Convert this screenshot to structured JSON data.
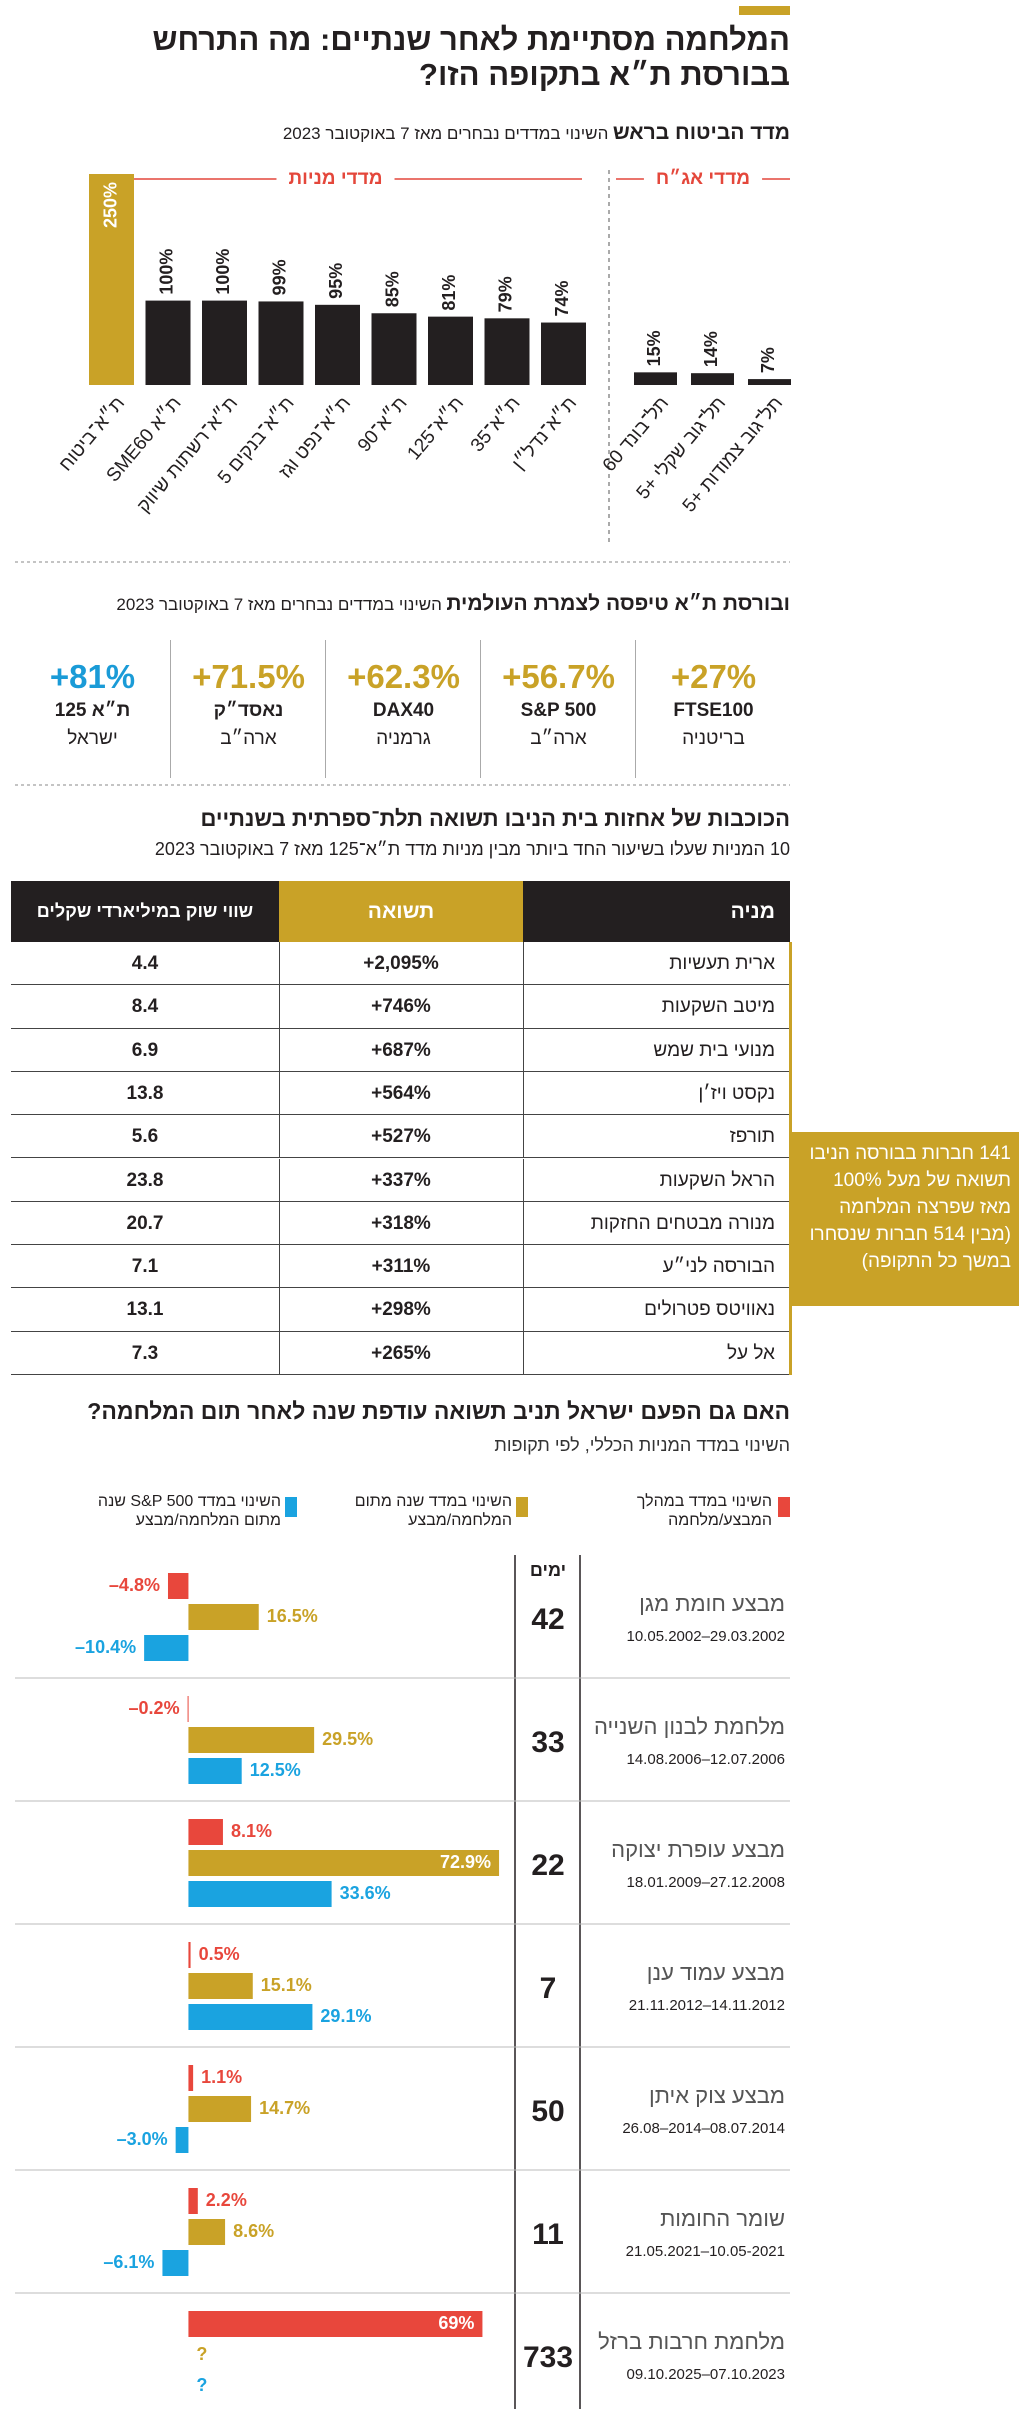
{
  "title": "המלחמה מסתיימת לאחר שנתיים: מה התרחש בבורסת ת״א בתקופה הזו?",
  "section1": {
    "headline": "מדד הביטוח בראש",
    "subtitle": "השינוי במדדים נבחרים מאז 7 באוקטובר 2023"
  },
  "chart_data": [
    {
      "type": "bar",
      "title": "מדדי מניות",
      "categories": [
        "ת״א־ביטוח",
        "ת״א SME60",
        "ת״א־רשתות שיווק",
        "ת״א־בנקים 5",
        "ת״א־נפט וגז",
        "ת״א־90",
        "ת״א־125",
        "ת״א־35",
        "ת״א־נדל״ן"
      ],
      "values": [
        250,
        100,
        100,
        99,
        95,
        85,
        81,
        79,
        74
      ],
      "value_labels": [
        "250%",
        "100%",
        "100%",
        "99%",
        "95%",
        "85%",
        "81%",
        "79%",
        "74%"
      ],
      "colors": [
        "#c9a227",
        "#231f20",
        "#231f20",
        "#231f20",
        "#231f20",
        "#231f20",
        "#231f20",
        "#231f20",
        "#231f20"
      ],
      "ylim": [
        0,
        250
      ]
    },
    {
      "type": "bar",
      "title": "מדדי אג״ח",
      "categories": [
        "תל־בונד 60",
        "תל־גוב שקלי +5",
        "תל־גוב צמודות +5"
      ],
      "values": [
        15,
        14,
        7
      ],
      "value_labels": [
        "15%",
        "14%",
        "7%"
      ],
      "colors": [
        "#231f20",
        "#231f20",
        "#231f20"
      ],
      "ylim": [
        0,
        250
      ]
    },
    {
      "type": "hbar",
      "title": "האם גם הפעם ישראל תניב תשואה עודפת שנה לאחר תום המלחמה?",
      "subtitle": "השינוי במדד המניות הכללי, לפי תקופות",
      "categories": [
        "מבצע חומת מגן",
        "מלחמת לבנון השנייה",
        "מבצע עופרת יצוקה",
        "מבצע עמוד ענן",
        "מבצע צוק איתן",
        "שומר החומות",
        "מלחמת חרבות ברזל"
      ],
      "dates": [
        "10.05.2002–29.03.2002",
        "14.08.2006–12.07.2006",
        "18.01.2009–27.12.2008",
        "21.11.2012–14.11.2012",
        "26.08–2014–08.07.2014",
        "21.05.2021–10.05-2021",
        "09.10.2025–07.10.2023"
      ],
      "days_label": "ימים",
      "days": [
        42,
        33,
        22,
        7,
        50,
        11,
        733
      ],
      "series": [
        {
          "name": "השינוי במדד במהלך המבצע/מלחמה",
          "color": "#e8473c",
          "values": [
            -4.8,
            -0.2,
            8.1,
            0.5,
            1.1,
            2.2,
            69
          ],
          "value_labels": [
            "–4.8%",
            "–0.2%",
            "8.1%",
            "0.5%",
            "1.1%",
            "2.2%",
            "69%"
          ]
        },
        {
          "name": "השינוי במדד שנה מתום המלחמה/מבצע",
          "color": "#c9a227",
          "values": [
            16.5,
            29.5,
            72.9,
            15.1,
            14.7,
            8.6,
            null
          ],
          "value_labels": [
            "16.5%",
            "29.5%",
            "72.9%",
            "15.1%",
            "14.7%",
            "8.6%",
            "?"
          ]
        },
        {
          "name": "השינוי במדד S&P 500 שנה מתום המלחמה/מבצע",
          "color": "#1aa3e0",
          "values": [
            -10.4,
            12.5,
            33.6,
            29.1,
            -3.0,
            -6.1,
            null
          ],
          "value_labels": [
            "–10.4%",
            "12.5%",
            "33.6%",
            "29.1%",
            "–3.0%",
            "–6.1%",
            "?"
          ]
        }
      ],
      "xlim": [
        -40,
        75
      ]
    }
  ],
  "section2": {
    "headline": "ובורסת ת״א טיפסה לצמרת העולמית",
    "subtitle": "השינוי במדדים נבחרים מאז 7 באוקטובר 2023",
    "items": [
      {
        "value": "+27%",
        "name": "FTSE100",
        "country": "בריטניה",
        "color": "#c9a227"
      },
      {
        "value": "+56.7%",
        "name": "S&P 500",
        "country": "ארה״ב",
        "color": "#c9a227"
      },
      {
        "value": "+62.3%",
        "name": "DAX40",
        "country": "גרמניה",
        "color": "#c9a227"
      },
      {
        "value": "+71.5%",
        "name": "נאסד״ק",
        "country": "ארה״ב",
        "color": "#c9a227"
      },
      {
        "value": "+81%",
        "name": "ת״א 125",
        "country": "ישראל",
        "color": "#1a9bd7"
      }
    ]
  },
  "table": {
    "title": "הכוכבות של אחזות בית הניבו תשואה תלת־ספרתית בשנתיים",
    "subtitle": "10 המניות שעלו בשיעור החד ביותר מבין מניות מדד ת״א־125 מאז 7 באוקטובר 2023",
    "header": [
      "מניה",
      "תשואה",
      "שווי שוק במיליארדי שקלים"
    ],
    "rows": [
      [
        "ארית תעשיות",
        "+2,095%",
        "4.4"
      ],
      [
        "מיטב השקעות",
        "+746%",
        "8.4"
      ],
      [
        "מנועי בית שמש",
        "+687%",
        "6.9"
      ],
      [
        "נקסט ויז׳ן",
        "+564%",
        "13.8"
      ],
      [
        "תורפז",
        "+527%",
        "5.6"
      ],
      [
        "הראל השקעות",
        "+337%",
        "23.8"
      ],
      [
        "מנורה מבטחים החזקות",
        "+318%",
        "20.7"
      ],
      [
        "הבורסה לני״ע",
        "+311%",
        "7.1"
      ],
      [
        "נאוויטס פטרולים",
        "+298%",
        "13.1"
      ],
      [
        "אל על",
        "+265%",
        "7.3"
      ]
    ],
    "note": "141 חברות בבורסה הניבו תשואה של מעל 100% מאז שפרצה המלחמה (מבין 514 חברות שנסחרו במשך כל התקופה)"
  }
}
